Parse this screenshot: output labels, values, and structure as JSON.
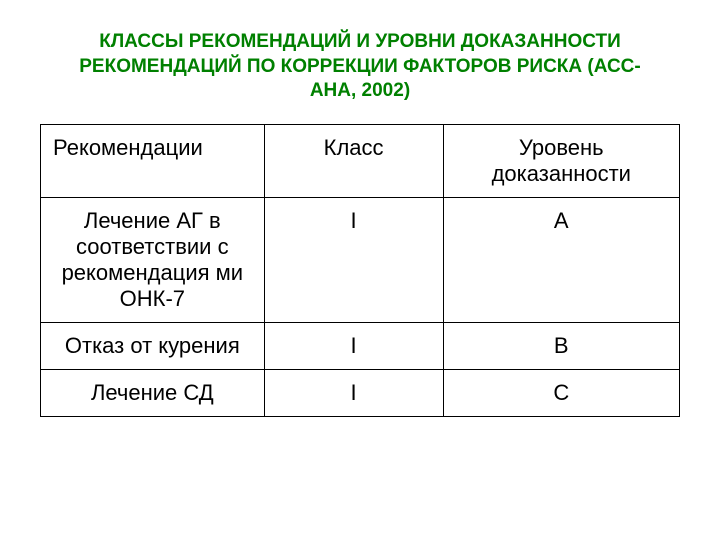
{
  "title": "КЛАССЫ РЕКОМЕНДАЦИЙ И УРОВНИ ДОКАЗАННОСТИ РЕКОМЕНДАЦИЙ ПО КОРРЕКЦИИ ФАКТОРОВ РИСКА (АСС-АНА, 2002)",
  "table": {
    "columns": [
      "Рекомендации",
      "Класс",
      "Уровень доказанности"
    ],
    "rows": [
      [
        "Лечение АГ в соответствии с рекомендация ми ОНК-7",
        "I",
        "A"
      ],
      [
        "Отказ от курения",
        "I",
        "B"
      ],
      [
        "Лечение СД",
        "I",
        "C"
      ]
    ],
    "title_color": "#008000",
    "title_fontsize": 19,
    "cell_fontsize": 22,
    "border_color": "#000000",
    "background_color": "#ffffff",
    "column_widths": [
      "35%",
      "28%",
      "37%"
    ]
  }
}
